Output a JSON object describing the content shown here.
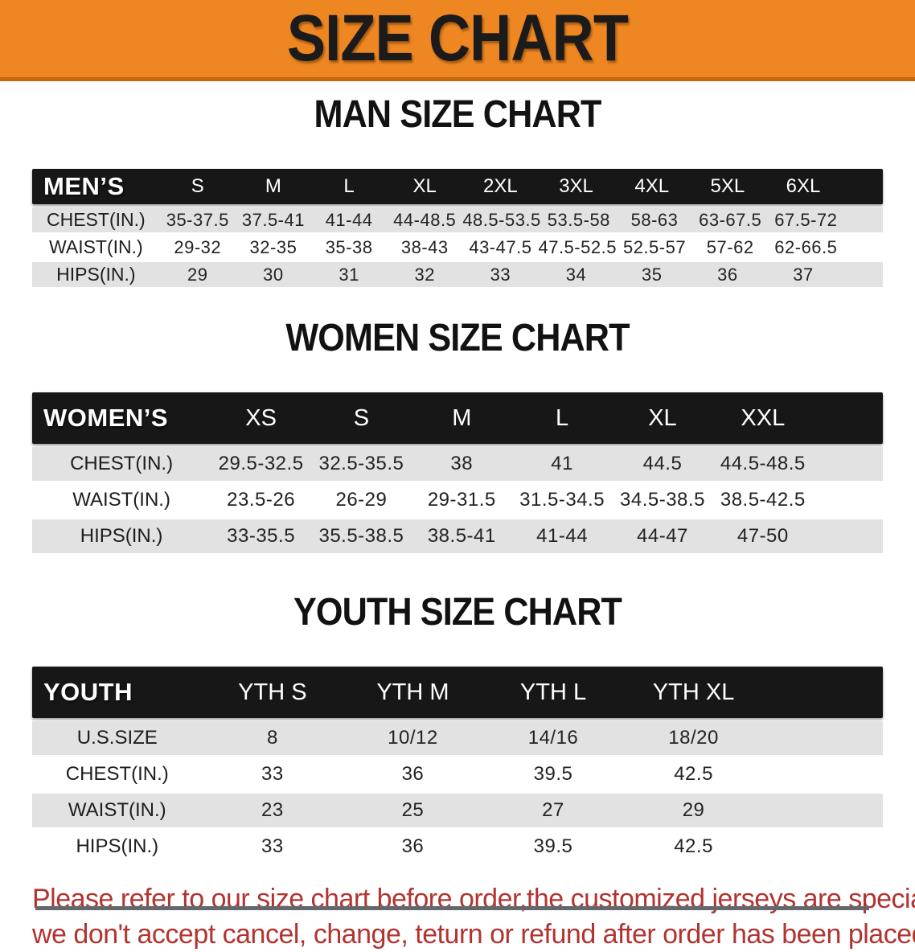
{
  "banner": {
    "title": "SIZE CHART"
  },
  "colors": {
    "banner-bg": "#ee8722",
    "banner-edge": "#c5660a",
    "header-bg": "#171717",
    "row-gray": "#e2e2e2",
    "text-red": "#b23431"
  },
  "sections": [
    {
      "id": "men",
      "heading": "MAN SIZE CHART",
      "corner": "MEN’S",
      "sizes": [
        "S",
        "M",
        "L",
        "XL",
        "2XL",
        "3XL",
        "4XL",
        "5XL",
        "6XL"
      ],
      "rows": [
        {
          "label": "CHEST(IN.)",
          "values": [
            "35-37.5",
            "37.5-41",
            "41-44",
            "44-48.5",
            "48.5-53.5",
            "53.5-58",
            "58-63",
            "63-67.5",
            "67.5-72"
          ]
        },
        {
          "label": "WAIST(IN.)",
          "values": [
            "29-32",
            "32-35",
            "35-38",
            "38-43",
            "43-47.5",
            "47.5-52.5",
            "52.5-57",
            "57-62",
            "62-66.5"
          ]
        },
        {
          "label": "HIPS(IN.)",
          "values": [
            "29",
            "30",
            "31",
            "32",
            "33",
            "34",
            "35",
            "36",
            "37"
          ]
        }
      ]
    },
    {
      "id": "women",
      "heading": "WOMEN SIZE CHART",
      "corner": "WOMEN’S",
      "sizes": [
        "XS",
        "S",
        "M",
        "L",
        "XL",
        "XXL"
      ],
      "rows": [
        {
          "label": "CHEST(IN.)",
          "values": [
            "29.5-32.5",
            "32.5-35.5",
            "38",
            "41",
            "44.5",
            "44.5-48.5"
          ]
        },
        {
          "label": "WAIST(IN.)",
          "values": [
            "23.5-26",
            "26-29",
            "29-31.5",
            "31.5-34.5",
            "34.5-38.5",
            "38.5-42.5"
          ]
        },
        {
          "label": "HIPS(IN.)",
          "values": [
            "33-35.5",
            "35.5-38.5",
            "38.5-41",
            "41-44",
            "44-47",
            "47-50"
          ]
        }
      ]
    },
    {
      "id": "youth",
      "heading": "YOUTH SIZE CHART",
      "corner": "YOUTH",
      "sizes": [
        "YTH S",
        "YTH M",
        "YTH L",
        "YTH XL"
      ],
      "rows": [
        {
          "label": "U.S.SIZE",
          "values": [
            "8",
            "10/12",
            "14/16",
            "18/20"
          ]
        },
        {
          "label": "CHEST(IN.)",
          "values": [
            "33",
            "36",
            "39.5",
            "42.5"
          ]
        },
        {
          "label": "WAIST(IN.)",
          "values": [
            "23",
            "25",
            "27",
            "29"
          ]
        },
        {
          "label": "HIPS(IN.)",
          "values": [
            "33",
            "36",
            "39.5",
            "42.5"
          ]
        }
      ]
    }
  ],
  "disclaimer": {
    "line1": "Please refer to our size chart before order,the customized jerseys are special products,",
    "line2": "we don't accept cancel, change, teturn or refund after order has been placed!"
  }
}
